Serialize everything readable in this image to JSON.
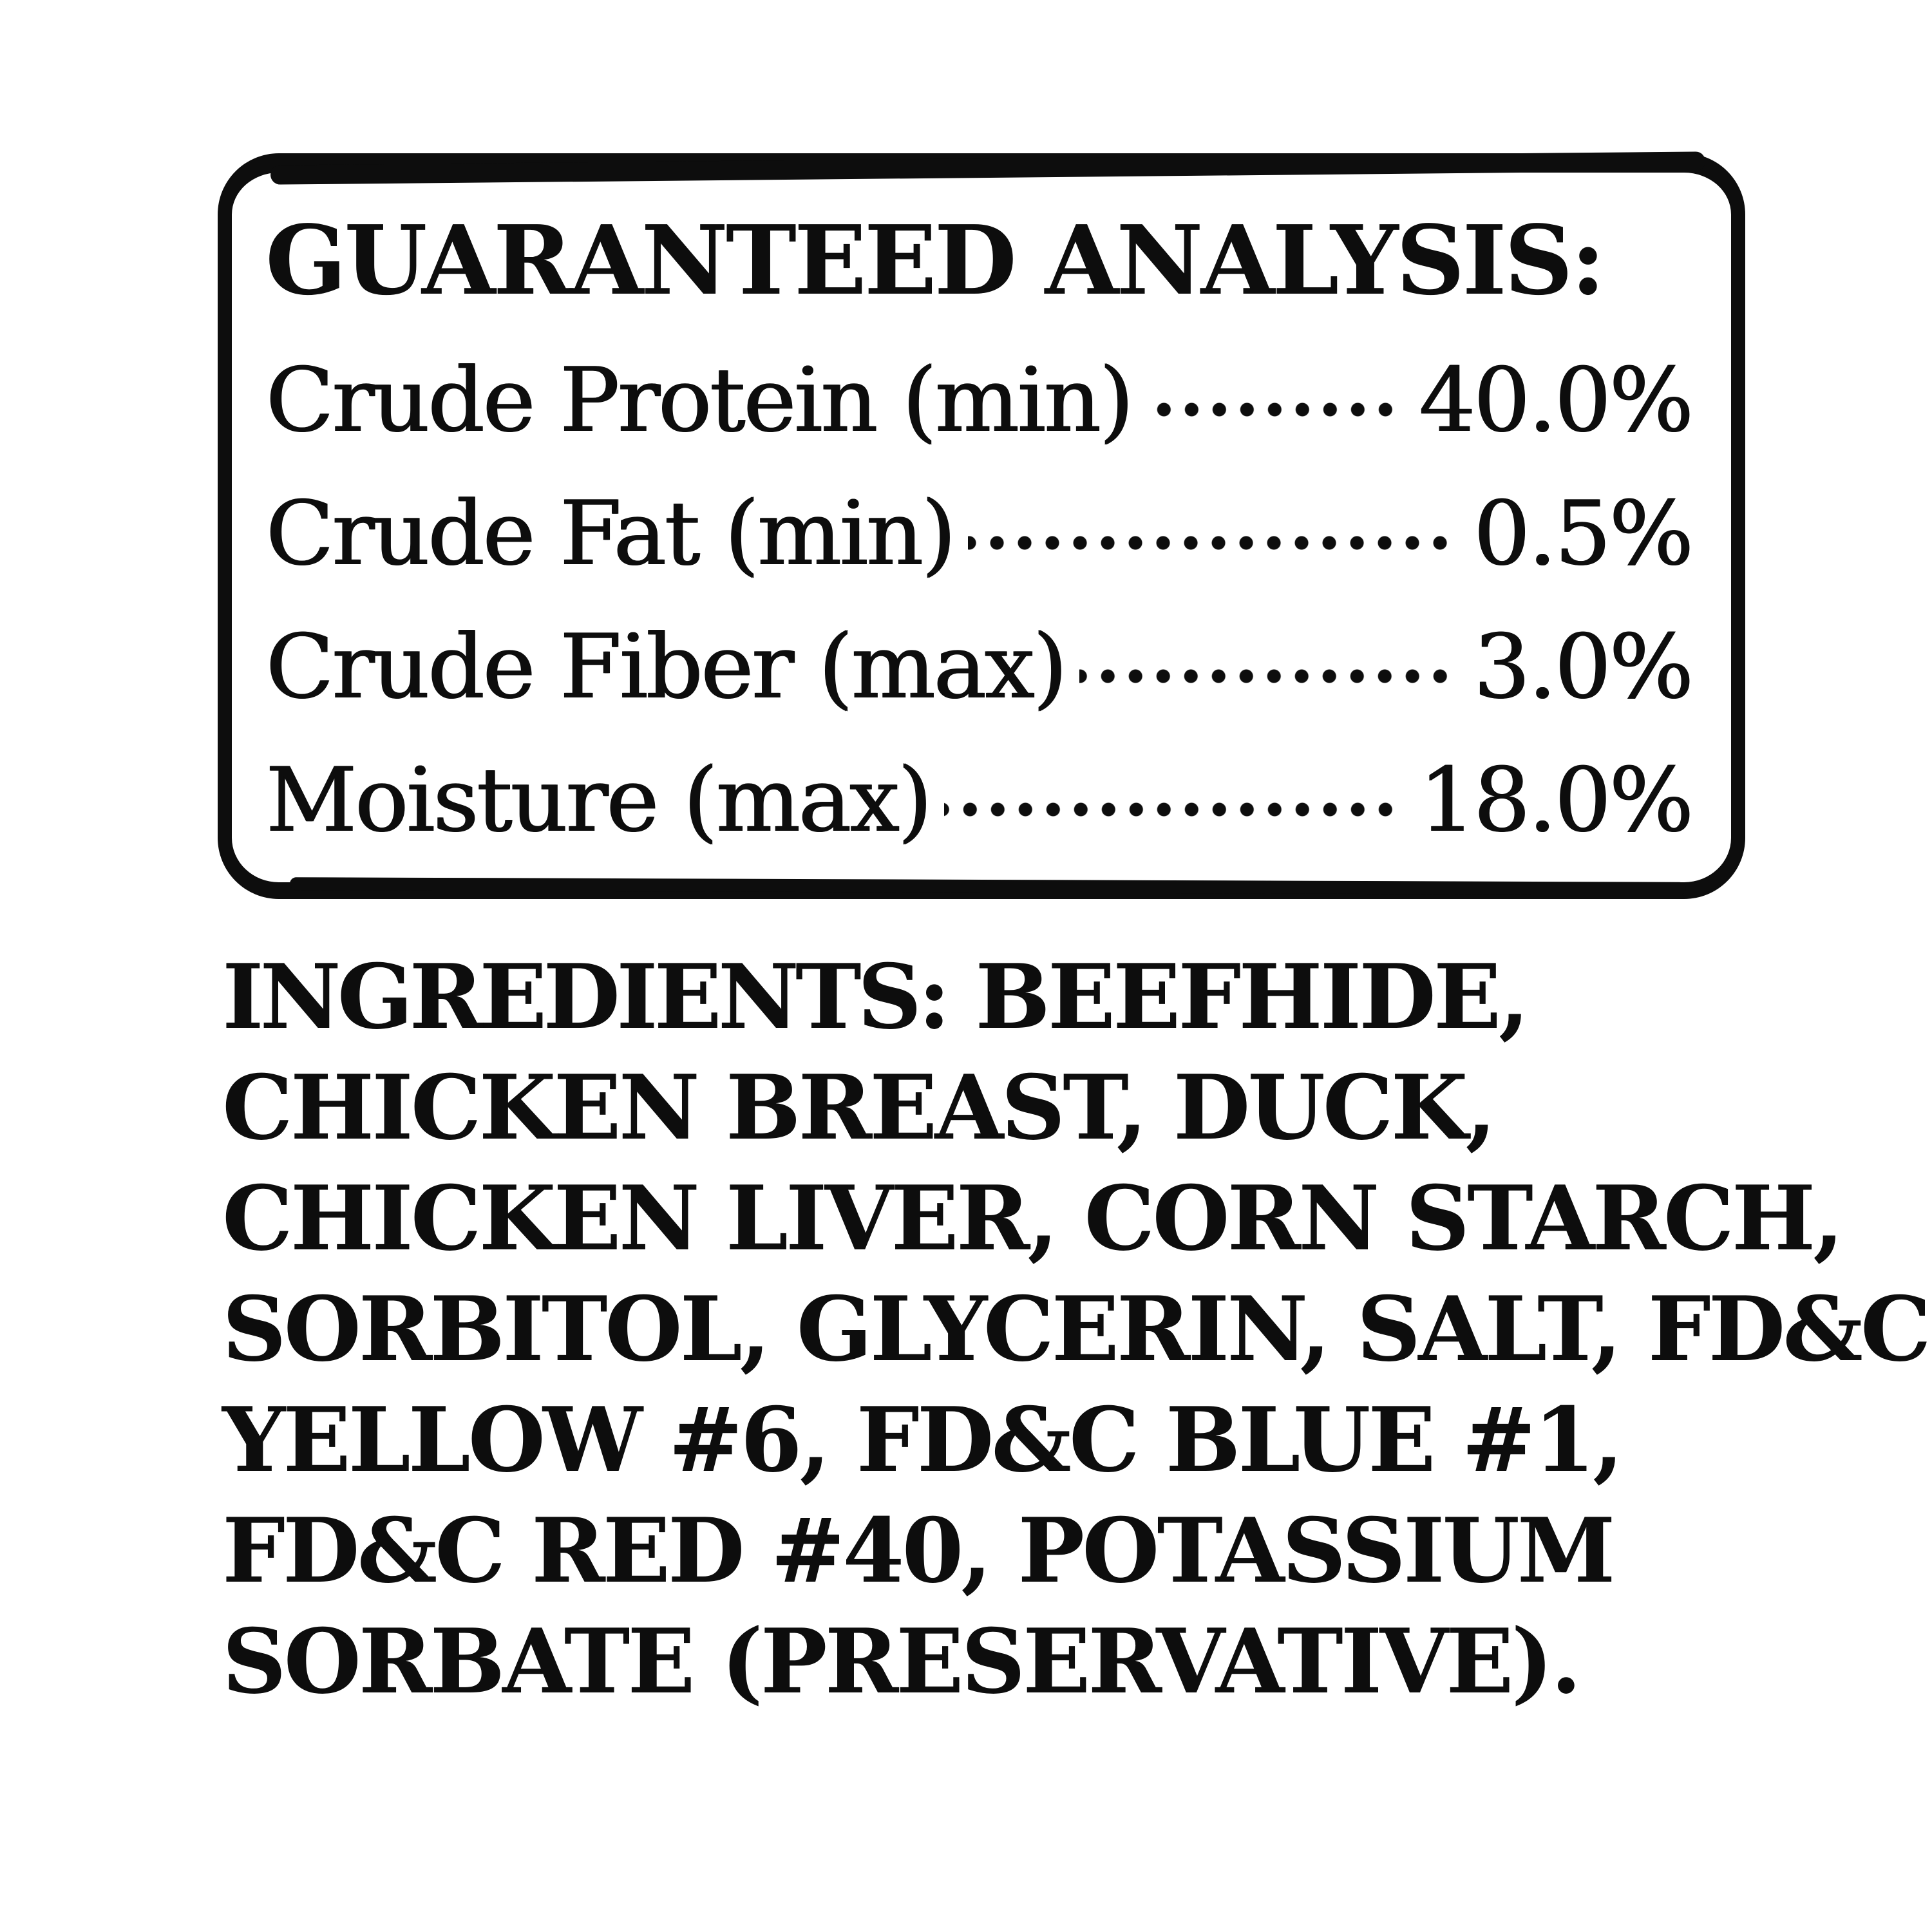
{
  "colors": {
    "ink": "#0d0d0d",
    "background": "#ffffff"
  },
  "guaranteed_analysis": {
    "title": "GUARANTEED ANALYSIS:",
    "rows": [
      {
        "label": "Crude Protein (min)",
        "value": "40.0%"
      },
      {
        "label": "Crude Fat (min)",
        "value": "0.5%"
      },
      {
        "label": "Crude Fiber (max)",
        "value": "3.0%"
      },
      {
        "label": "Moisture (max)",
        "value": "18.0%"
      }
    ]
  },
  "ingredients": {
    "heading": "INGREDIENTS:",
    "first_line_rest": "BEEFHIDE,",
    "lines": [
      "CHICKEN BREAST, DUCK,",
      "CHICKEN LIVER, CORN STARCH,",
      "SORBITOL, GLYCERIN, SALT, FD&C",
      "YELLOW #6, FD&C BLUE #1,",
      "FD&C RED #40, POTASSIUM",
      "SORBATE (PRESERVATIVE)."
    ]
  }
}
